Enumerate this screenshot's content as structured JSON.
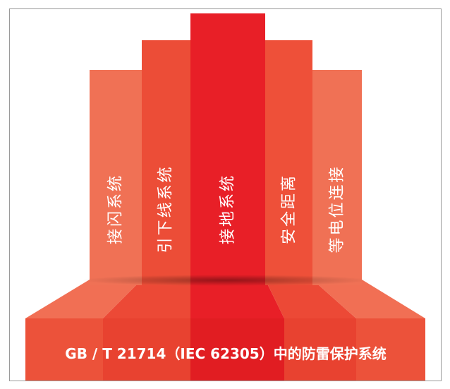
{
  "columns": [
    {
      "label": "接闪系统",
      "color": "#f07155"
    },
    {
      "label": "引下线系统",
      "color": "#ec4d37"
    },
    {
      "label": "接地系统",
      "color": "#e81f27"
    },
    {
      "label": "安全距离",
      "color": "#ee5039"
    },
    {
      "label": "等电位连接",
      "color": "#f07155"
    }
  ],
  "base": {
    "title": "GB / T 21714（IEC 62305）中的防雷保护系统",
    "colors": [
      "#ec523a",
      "#e84230",
      "#e11d22",
      "#e84230",
      "#ec523a"
    ],
    "top_colors": [
      "#f16f54",
      "#ec4936",
      "#e81f27",
      "#ec4936",
      "#f16f54"
    ]
  }
}
